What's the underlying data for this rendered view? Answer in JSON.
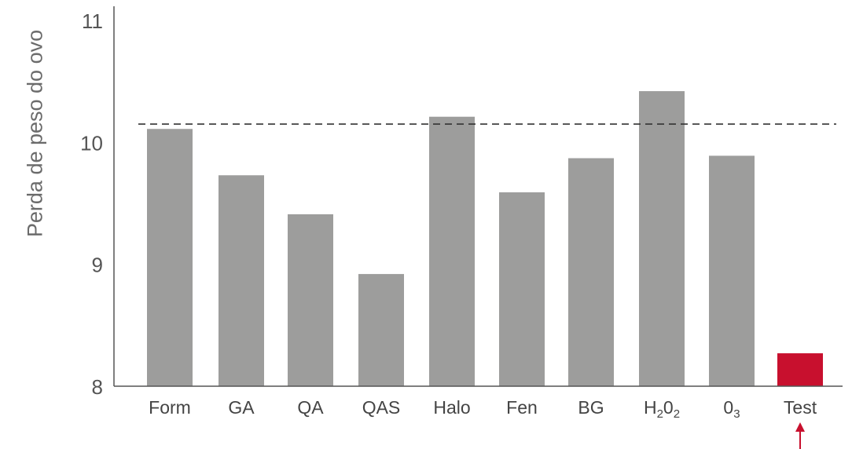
{
  "chart_data": {
    "type": "bar",
    "ylabel": "Perda de peso do ovo",
    "ylim": [
      8,
      11
    ],
    "yticks": [
      8,
      9,
      10,
      11
    ],
    "categories": [
      {
        "base": "Form",
        "sub": ""
      },
      {
        "base": "GA",
        "sub": ""
      },
      {
        "base": "QA",
        "sub": ""
      },
      {
        "base": "QAS",
        "sub": ""
      },
      {
        "base": "Halo",
        "sub": ""
      },
      {
        "base": "Fen",
        "sub": ""
      },
      {
        "base": "BG",
        "sub": ""
      },
      {
        "base": "H",
        "sub": "2",
        "base2": "0",
        "sub2": "2"
      },
      {
        "base": "0",
        "sub": "3"
      },
      {
        "base": "Test",
        "sub": ""
      }
    ],
    "values": [
      10.11,
      9.73,
      9.41,
      8.92,
      10.21,
      9.59,
      9.87,
      10.42,
      9.89,
      8.27
    ],
    "reference_line": 10.15,
    "highlight_index": 9,
    "colors": {
      "bar": "#9d9d9c",
      "highlight": "#c8102e",
      "axis": "#555555",
      "dashed": "#333333",
      "text": "#444444",
      "tick_text": "#555555"
    },
    "arrow_below": "Test"
  }
}
